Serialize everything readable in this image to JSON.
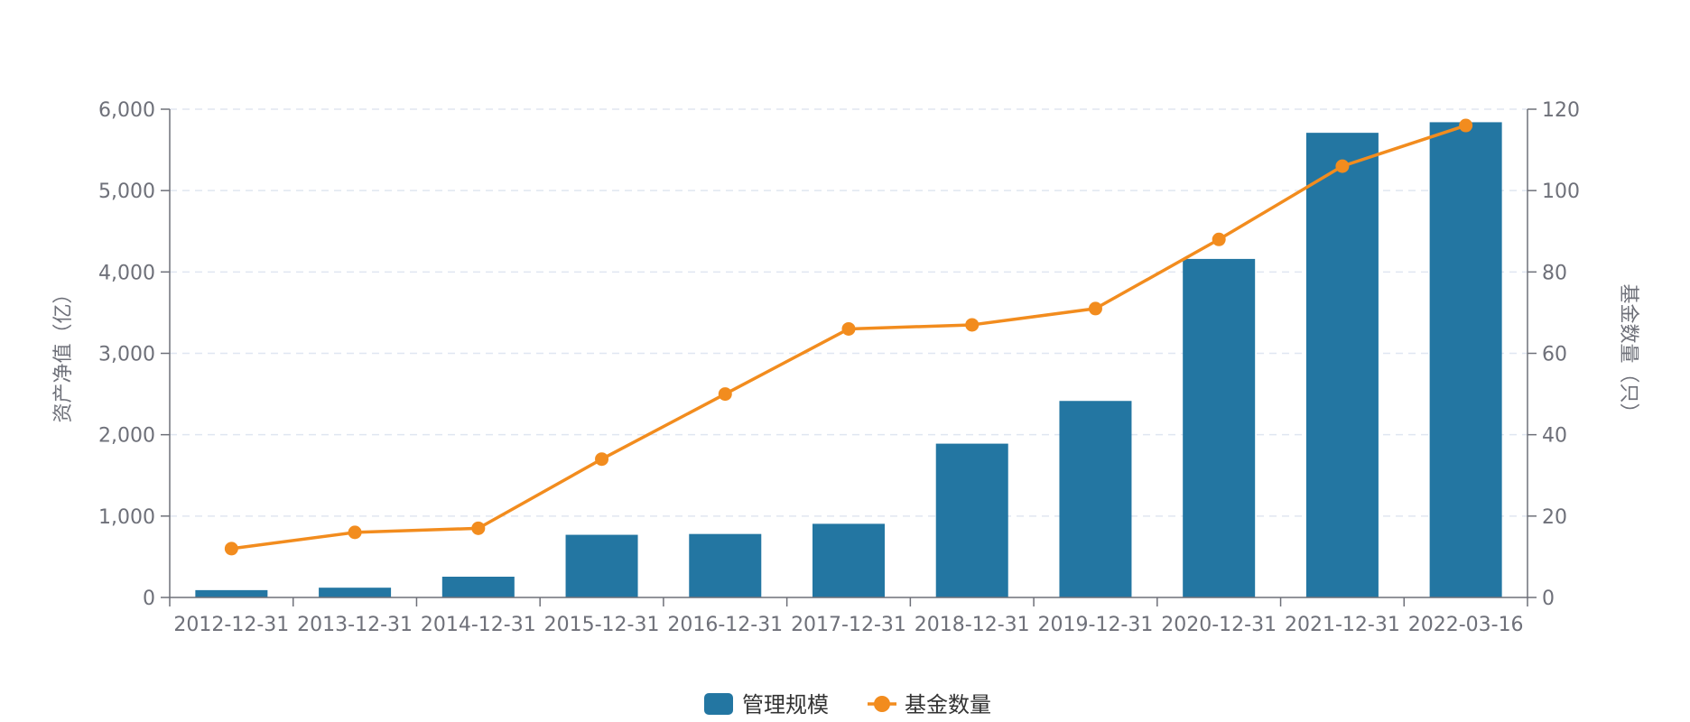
{
  "chart_data": {
    "type": "bar",
    "title": "",
    "categories": [
      "2012-12-31",
      "2013-12-31",
      "2014-12-31",
      "2015-12-31",
      "2016-12-31",
      "2017-12-31",
      "2018-12-31",
      "2019-12-31",
      "2020-12-31",
      "2021-12-31",
      "2022-03-16"
    ],
    "series": [
      {
        "name": "管理规模",
        "type": "bar",
        "axis": "left",
        "color": "#2376a2",
        "values": [
          90,
          120,
          255,
          770,
          780,
          905,
          1890,
          2415,
          4160,
          5710,
          5840
        ]
      },
      {
        "name": "基金数量",
        "type": "line",
        "axis": "right",
        "color": "#f28c1e",
        "values": [
          12,
          16,
          17,
          34,
          50,
          66,
          67,
          71,
          88,
          106,
          116
        ]
      }
    ],
    "y_left": {
      "label": "资产净值（亿）",
      "range": [
        0,
        6000
      ],
      "ticks": [
        "0",
        "1,000",
        "2,000",
        "3,000",
        "4,000",
        "5,000",
        "6,000"
      ]
    },
    "y_right": {
      "label": "基金数量（只）",
      "range": [
        0,
        120
      ],
      "ticks": [
        "0",
        "20",
        "40",
        "60",
        "80",
        "100",
        "120"
      ]
    },
    "grid": true,
    "legend": "bottom-center"
  }
}
